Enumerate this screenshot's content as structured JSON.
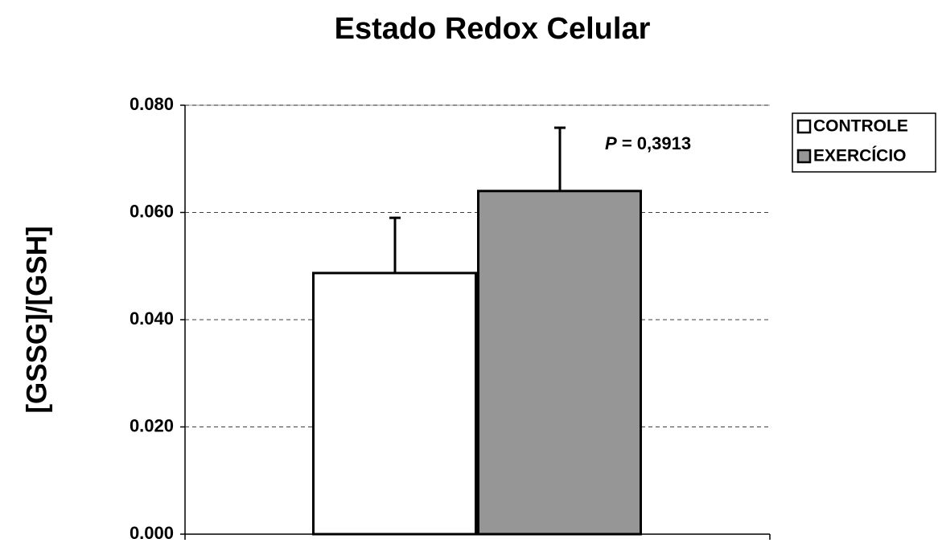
{
  "chart_data": {
    "type": "bar",
    "title": "Estado Redox Celular",
    "y_label": "[GSSG]/[GSH]",
    "annotation": {
      "variable": "P",
      "text": "= 0,3913"
    },
    "categories": [
      null
    ],
    "series": [
      {
        "name": "CONTROLE",
        "color": "#ffffff",
        "values": [
          0.0487
        ],
        "errors": [
          0.0103
        ]
      },
      {
        "name": "EXERCÍCIO",
        "color": "#969696",
        "values": [
          0.064
        ],
        "errors": [
          0.0118
        ]
      }
    ],
    "ylim": [
      0,
      0.08
    ],
    "yticks": [
      {
        "value": 0,
        "label": "0.000"
      },
      {
        "value": 0.02,
        "label": "0.020"
      },
      {
        "value": 0.04,
        "label": "0.040"
      },
      {
        "value": 0.06,
        "label": "0.060"
      },
      {
        "value": 0.08,
        "label": "0.080"
      }
    ],
    "grid": true,
    "legend": "right"
  }
}
